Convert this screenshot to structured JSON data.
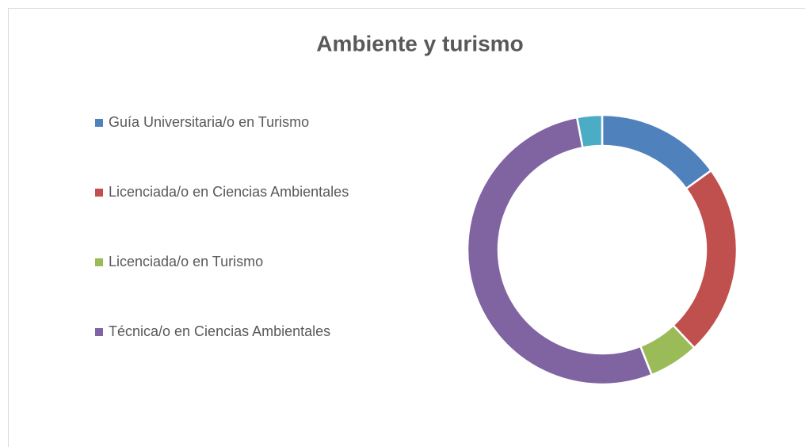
{
  "chart_data": {
    "type": "donut",
    "title": "Ambiente y turismo",
    "categories": [
      "Guía Universitaria/o en Turismo",
      "Licenciada/o en Ciencias Ambientales",
      "Licenciada/o en Turismo",
      "Técnica/o en Ciencias Ambientales",
      null
    ],
    "values": [
      15,
      23,
      6,
      53,
      3
    ],
    "colors": [
      "#4f81bd",
      "#c0504d",
      "#9bbb59",
      "#8064a2",
      "#4bacc6"
    ],
    "legend": "left"
  }
}
